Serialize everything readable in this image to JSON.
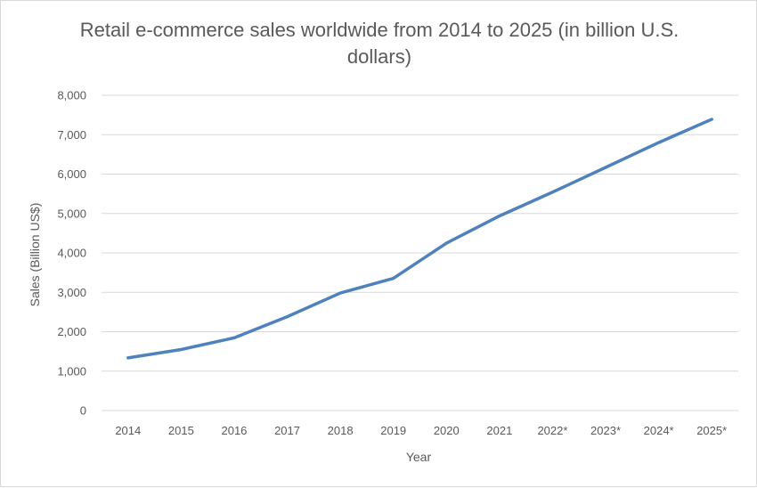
{
  "chart_data": {
    "type": "line",
    "title": "Retail e-commerce sales worldwide from 2014 to 2025 (in billion U.S. dollars)",
    "xlabel": "Year",
    "ylabel": "Sales (Billion US$)",
    "categories": [
      "2014",
      "2015",
      "2016",
      "2017",
      "2018",
      "2019",
      "2020",
      "2021",
      "2022*",
      "2023*",
      "2024*",
      "2025*"
    ],
    "series": [
      {
        "values": [
          1336,
          1548,
          1845,
          2382,
          2982,
          3354,
          4248,
          4938,
          5542,
          6169,
          6800,
          7391
        ]
      }
    ],
    "ylim": [
      0,
      8000
    ],
    "yticks": [
      0,
      1000,
      2000,
      3000,
      4000,
      5000,
      6000,
      7000,
      8000
    ],
    "ytick_labels": [
      "0",
      "1,000",
      "2,000",
      "3,000",
      "4,000",
      "5,000",
      "6,000",
      "7,000",
      "8,000"
    ],
    "grid": true,
    "legend": "none",
    "line_color": "#4f81bd",
    "grid_color": "#d9d9d9",
    "text_color": "#595959"
  }
}
